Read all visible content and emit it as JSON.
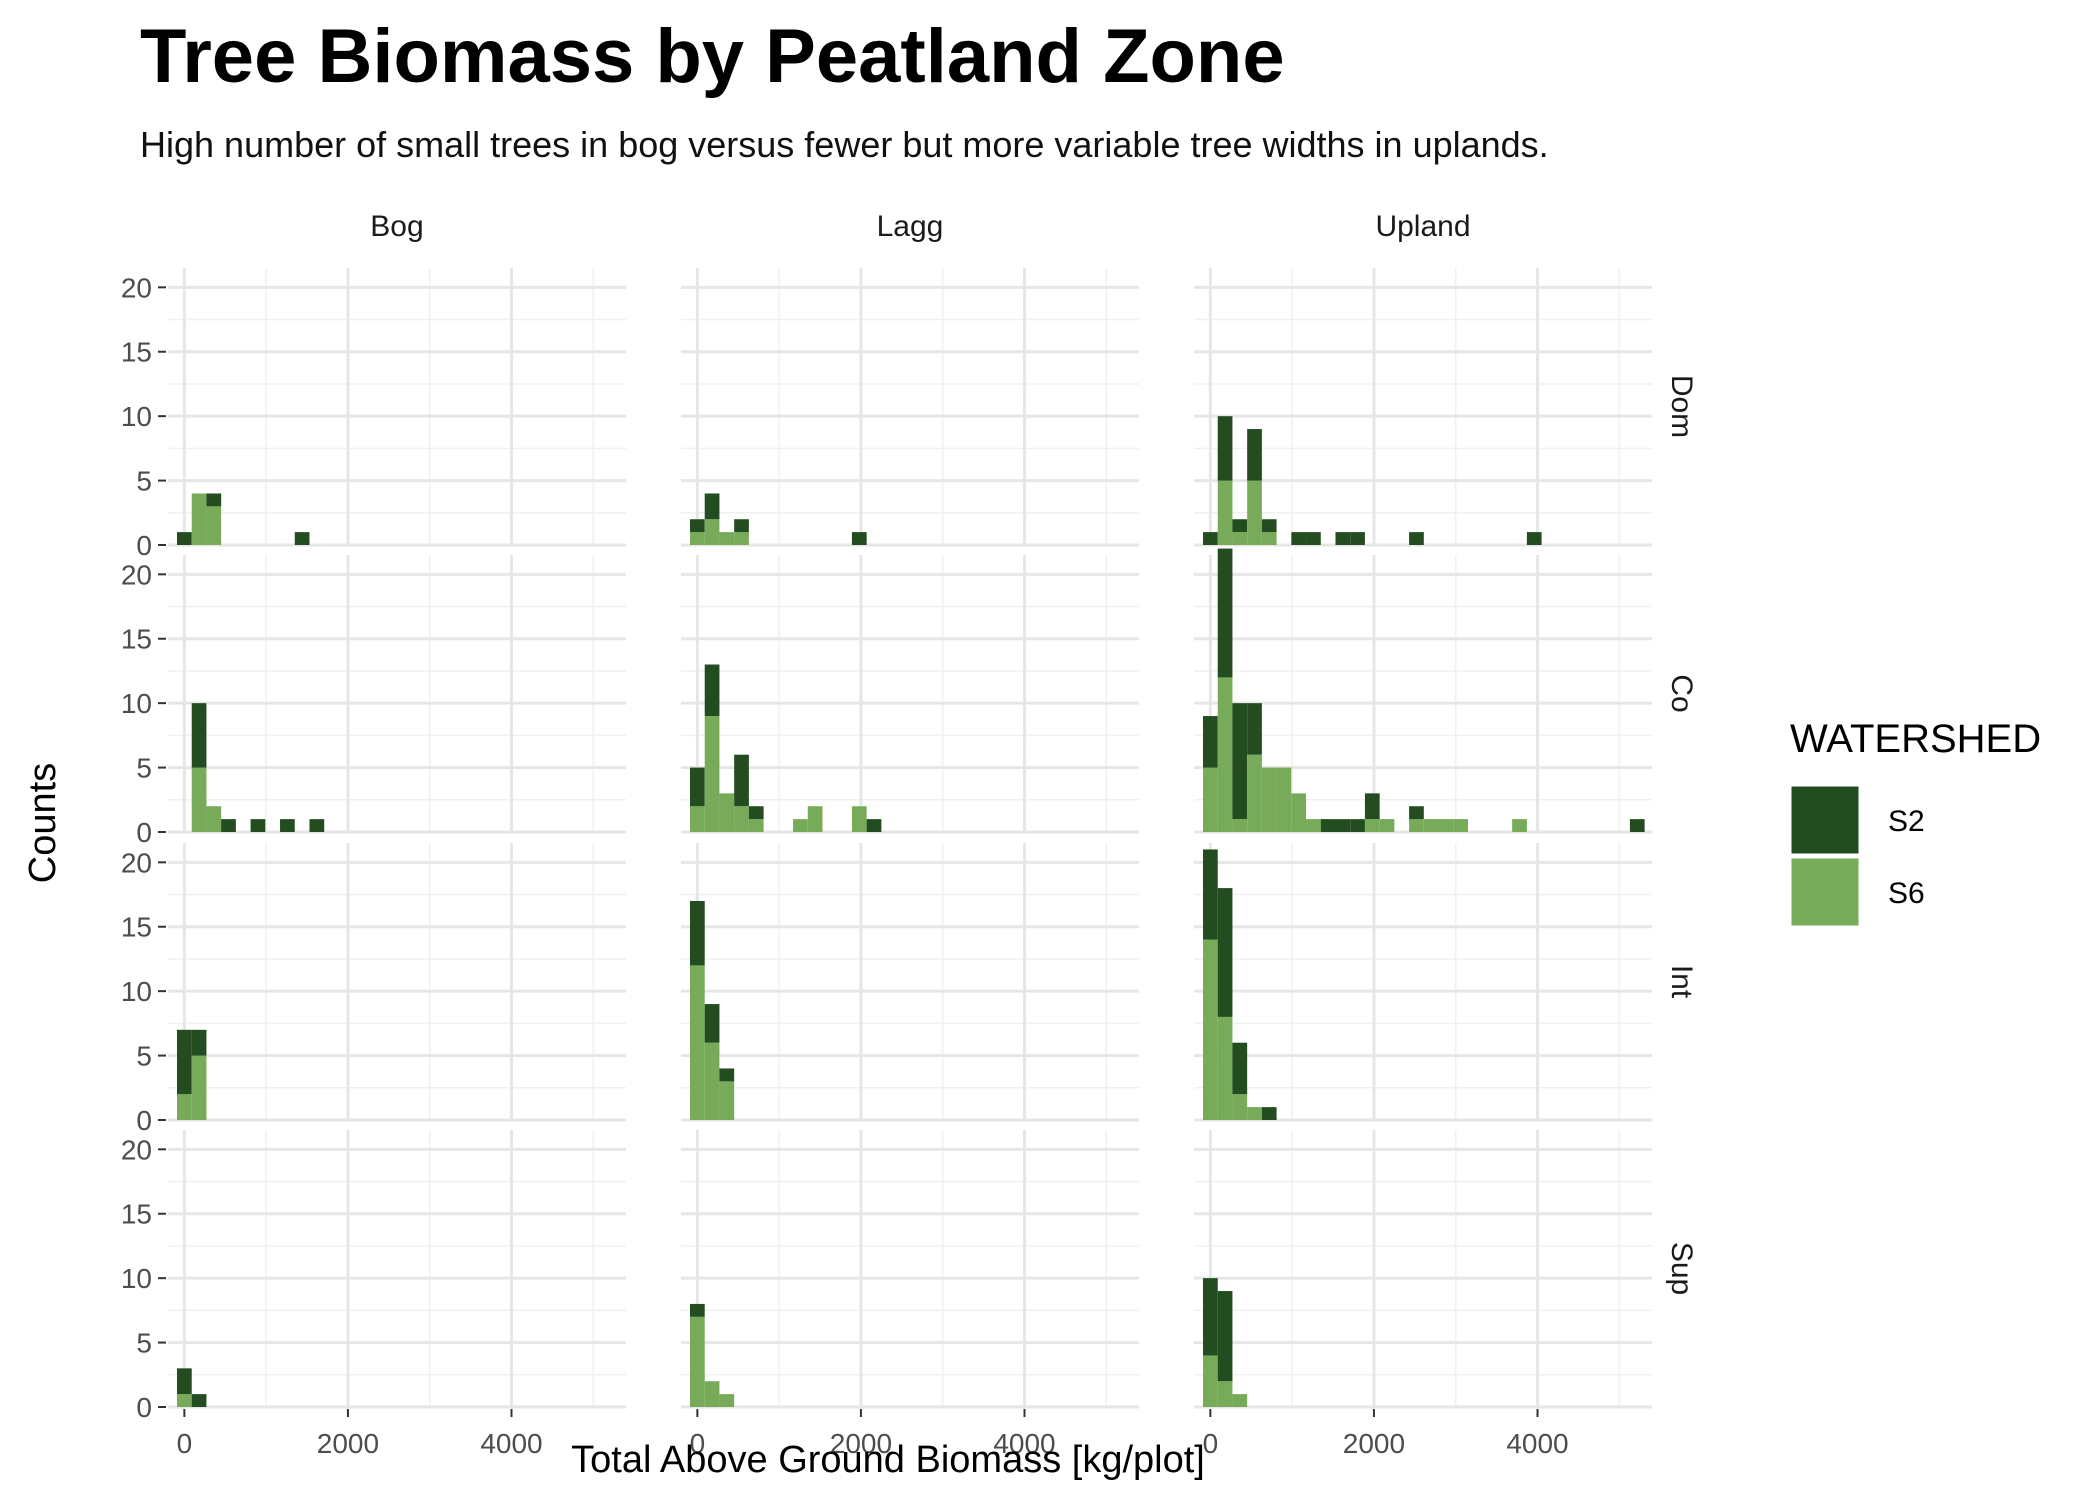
{
  "chart_data": {
    "type": "histogram",
    "title": "Tree Biomass by Peatland Zone",
    "subtitle": "High number of small trees in bog versus fewer but more variable tree widths in uplands.",
    "xlabel": "Total Above Ground Biomass [kg/plot]",
    "ylabel": "Counts",
    "x_ticks": [
      0,
      2000,
      4000
    ],
    "y_ticks": [
      0,
      5,
      10,
      15,
      20
    ],
    "xlim": [
      -200,
      5400
    ],
    "ylim": [
      0,
      21.5
    ],
    "bin_width": 180,
    "columns": [
      "Bog",
      "Lagg",
      "Upland"
    ],
    "rows": [
      "Dom",
      "Co",
      "Int",
      "Sup"
    ],
    "grid": true,
    "stacking": "stacked",
    "legend": {
      "title": "WATERSHED",
      "position": "right",
      "entries": [
        {
          "name": "S2",
          "color": "#234d20"
        },
        {
          "name": "S6",
          "color": "#77ab59"
        }
      ]
    },
    "panels": [
      {
        "row": "Dom",
        "col": "Bog",
        "bins": [
          {
            "x": 0,
            "S6": 0,
            "S2": 1
          },
          {
            "x": 180,
            "S6": 4,
            "S2": 0
          },
          {
            "x": 360,
            "S6": 3,
            "S2": 1
          },
          {
            "x": 1440,
            "S6": 0,
            "S2": 1
          }
        ]
      },
      {
        "row": "Dom",
        "col": "Lagg",
        "bins": [
          {
            "x": 0,
            "S6": 1,
            "S2": 1
          },
          {
            "x": 180,
            "S6": 2,
            "S2": 2
          },
          {
            "x": 360,
            "S6": 1,
            "S2": 0
          },
          {
            "x": 540,
            "S6": 1,
            "S2": 1
          },
          {
            "x": 1980,
            "S6": 0,
            "S2": 1
          }
        ]
      },
      {
        "row": "Dom",
        "col": "Upland",
        "bins": [
          {
            "x": 0,
            "S6": 0,
            "S2": 1
          },
          {
            "x": 180,
            "S6": 5,
            "S2": 5
          },
          {
            "x": 360,
            "S6": 1,
            "S2": 1
          },
          {
            "x": 540,
            "S6": 5,
            "S2": 4
          },
          {
            "x": 720,
            "S6": 1,
            "S2": 1
          },
          {
            "x": 1080,
            "S6": 0,
            "S2": 1
          },
          {
            "x": 1260,
            "S6": 0,
            "S2": 1
          },
          {
            "x": 1620,
            "S6": 0,
            "S2": 1
          },
          {
            "x": 1800,
            "S6": 0,
            "S2": 1
          },
          {
            "x": 2520,
            "S6": 0,
            "S2": 1
          },
          {
            "x": 3960,
            "S6": 0,
            "S2": 1
          }
        ]
      },
      {
        "row": "Co",
        "col": "Bog",
        "bins": [
          {
            "x": 180,
            "S6": 5,
            "S2": 5
          },
          {
            "x": 360,
            "S6": 2,
            "S2": 0
          },
          {
            "x": 540,
            "S6": 0,
            "S2": 1
          },
          {
            "x": 900,
            "S6": 0,
            "S2": 1
          },
          {
            "x": 1260,
            "S6": 0,
            "S2": 1
          },
          {
            "x": 1620,
            "S6": 0,
            "S2": 1
          }
        ]
      },
      {
        "row": "Co",
        "col": "Lagg",
        "bins": [
          {
            "x": 0,
            "S6": 2,
            "S2": 3
          },
          {
            "x": 180,
            "S6": 9,
            "S2": 4
          },
          {
            "x": 360,
            "S6": 3,
            "S2": 0
          },
          {
            "x": 540,
            "S6": 2,
            "S2": 4
          },
          {
            "x": 720,
            "S6": 1,
            "S2": 1
          },
          {
            "x": 1260,
            "S6": 1,
            "S2": 0
          },
          {
            "x": 1440,
            "S6": 2,
            "S2": 0
          },
          {
            "x": 1980,
            "S6": 2,
            "S2": 0
          },
          {
            "x": 2160,
            "S6": 0,
            "S2": 1
          }
        ]
      },
      {
        "row": "Co",
        "col": "Upland",
        "bins": [
          {
            "x": 0,
            "S6": 5,
            "S2": 4
          },
          {
            "x": 180,
            "S6": 12,
            "S2": 10
          },
          {
            "x": 360,
            "S6": 1,
            "S2": 9
          },
          {
            "x": 540,
            "S6": 6,
            "S2": 4
          },
          {
            "x": 720,
            "S6": 5,
            "S2": 0
          },
          {
            "x": 900,
            "S6": 5,
            "S2": 0
          },
          {
            "x": 1080,
            "S6": 3,
            "S2": 0
          },
          {
            "x": 1260,
            "S6": 1,
            "S2": 0
          },
          {
            "x": 1440,
            "S6": 0,
            "S2": 1
          },
          {
            "x": 1620,
            "S6": 0,
            "S2": 1
          },
          {
            "x": 1800,
            "S6": 0,
            "S2": 1
          },
          {
            "x": 1980,
            "S6": 1,
            "S2": 2
          },
          {
            "x": 2160,
            "S6": 1,
            "S2": 0
          },
          {
            "x": 2520,
            "S6": 1,
            "S2": 1
          },
          {
            "x": 2700,
            "S6": 1,
            "S2": 0
          },
          {
            "x": 2880,
            "S6": 1,
            "S2": 0
          },
          {
            "x": 3060,
            "S6": 1,
            "S2": 0
          },
          {
            "x": 3780,
            "S6": 1,
            "S2": 0
          },
          {
            "x": 5220,
            "S6": 0,
            "S2": 1
          }
        ]
      },
      {
        "row": "Int",
        "col": "Bog",
        "bins": [
          {
            "x": 0,
            "S6": 2,
            "S2": 5
          },
          {
            "x": 180,
            "S6": 5,
            "S2": 2
          }
        ]
      },
      {
        "row": "Int",
        "col": "Lagg",
        "bins": [
          {
            "x": 0,
            "S6": 12,
            "S2": 5
          },
          {
            "x": 180,
            "S6": 6,
            "S2": 3
          },
          {
            "x": 360,
            "S6": 3,
            "S2": 1
          }
        ]
      },
      {
        "row": "Int",
        "col": "Upland",
        "bins": [
          {
            "x": 0,
            "S6": 14,
            "S2": 7
          },
          {
            "x": 180,
            "S6": 8,
            "S2": 10
          },
          {
            "x": 360,
            "S6": 2,
            "S2": 4
          },
          {
            "x": 540,
            "S6": 1,
            "S2": 0
          },
          {
            "x": 720,
            "S6": 0,
            "S2": 1
          }
        ]
      },
      {
        "row": "Sup",
        "col": "Bog",
        "bins": [
          {
            "x": 0,
            "S6": 1,
            "S2": 2
          },
          {
            "x": 180,
            "S6": 0,
            "S2": 1
          }
        ]
      },
      {
        "row": "Sup",
        "col": "Lagg",
        "bins": [
          {
            "x": 0,
            "S6": 7,
            "S2": 1
          },
          {
            "x": 180,
            "S6": 2,
            "S2": 0
          },
          {
            "x": 360,
            "S6": 1,
            "S2": 0
          }
        ]
      },
      {
        "row": "Sup",
        "col": "Upland",
        "bins": [
          {
            "x": 0,
            "S6": 4,
            "S2": 6
          },
          {
            "x": 180,
            "S6": 2,
            "S2": 7
          },
          {
            "x": 360,
            "S6": 1,
            "S2": 0
          }
        ]
      }
    ]
  }
}
